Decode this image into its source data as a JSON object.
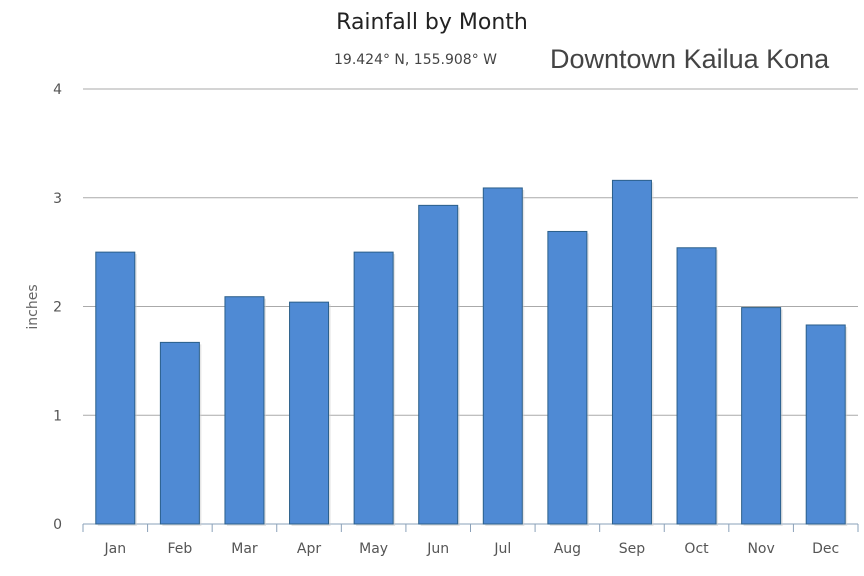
{
  "chart_data": {
    "type": "bar",
    "title": "Rainfall by Month",
    "subtitle": "19.424° N, 155.908° W",
    "annotation": "Downtown Kailua Kona",
    "xlabel": "",
    "ylabel": "inches",
    "ylim": [
      0,
      4
    ],
    "yticks": [
      "0",
      "1",
      "2",
      "3",
      "4"
    ],
    "grid": true,
    "categories": [
      "Jan",
      "Feb",
      "Mar",
      "Apr",
      "May",
      "Jun",
      "Jul",
      "Aug",
      "Sep",
      "Oct",
      "Nov",
      "Dec"
    ],
    "values": [
      2.5,
      1.67,
      2.09,
      2.04,
      2.5,
      2.93,
      3.09,
      2.69,
      3.16,
      2.54,
      1.99,
      1.83
    ],
    "colors": {
      "bar": "#4f8ad4",
      "bar_border": "#2b5f8a",
      "grid": "#aaaaaa"
    }
  }
}
